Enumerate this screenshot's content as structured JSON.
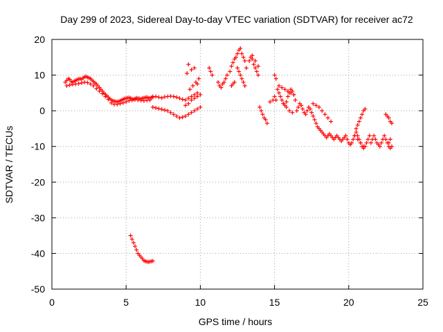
{
  "chart_data": {
    "type": "scatter",
    "title": "Day 299 of 2023, Sidereal Day-to-day VTEC variation (SDTVAR) for receiver ac72",
    "xlabel": "GPS time / hours",
    "ylabel": "SDTVAR / TECUs",
    "xlim": [
      0,
      25
    ],
    "ylim": [
      -50,
      20
    ],
    "xticks": [
      0,
      5,
      10,
      15,
      20,
      25
    ],
    "yticks": [
      -50,
      -40,
      -30,
      -20,
      -10,
      0,
      10,
      20
    ],
    "grid": true,
    "marker": "+",
    "color": "#ff0000",
    "series": [
      {
        "name": "SDTVAR",
        "x": [
          0.9,
          1.0,
          1.1,
          1.2,
          1.3,
          1.4,
          1.5,
          1.6,
          1.7,
          1.8,
          1.9,
          2.0,
          2.1,
          2.2,
          2.3,
          2.4,
          2.5,
          2.6,
          2.7,
          2.8,
          2.9,
          3.0,
          3.1,
          3.2,
          3.3,
          3.4,
          3.5,
          3.6,
          3.7,
          3.8,
          3.9,
          4.0,
          4.1,
          4.2,
          4.3,
          4.4,
          4.5,
          4.6,
          4.7,
          4.8,
          4.9,
          5.0,
          5.1,
          5.2,
          5.3,
          5.4,
          5.5,
          5.6,
          5.7,
          5.8,
          5.9,
          6.0,
          6.1,
          6.2,
          6.3,
          6.4,
          6.5,
          6.6,
          6.7,
          6.8,
          1.0,
          1.2,
          1.4,
          1.6,
          1.8,
          2.0,
          2.2,
          2.4,
          2.6,
          2.8,
          3.0,
          3.2,
          3.4,
          3.6,
          3.8,
          4.0,
          4.2,
          4.4,
          4.6,
          4.8,
          5.0,
          5.2,
          5.4,
          5.6,
          5.8,
          6.0,
          6.2,
          6.4,
          6.6,
          6.8,
          7.0,
          7.2,
          7.4,
          7.6,
          7.8,
          8.0,
          8.2,
          8.4,
          8.6,
          8.8,
          9.0,
          9.2,
          9.4,
          9.6,
          9.8,
          6.8,
          7.0,
          7.2,
          7.4,
          7.6,
          7.8,
          8.0,
          8.2,
          8.4,
          8.6,
          8.8,
          9.0,
          9.2,
          9.4,
          9.6,
          9.8,
          10.0,
          9.0,
          9.2,
          9.4,
          9.6,
          9.8,
          10.0,
          9.3,
          9.5,
          9.7,
          9.9,
          9.1,
          9.4,
          9.2,
          9.6,
          9.8,
          10.6,
          10.7,
          10.8,
          11.2,
          11.3,
          11.4,
          11.5,
          11.6,
          11.7,
          11.8,
          12.0,
          12.1,
          12.2,
          12.3,
          12.4,
          12.5,
          12.6,
          12.7,
          12.8,
          12.9,
          13.0,
          13.1,
          12.5,
          12.6,
          12.7,
          12.8,
          12.9,
          13.0,
          13.3,
          13.4,
          13.5,
          13.6,
          13.7,
          13.8,
          13.9,
          13.5,
          13.7,
          13.9,
          12.3,
          12.2,
          12.1,
          14.0,
          14.1,
          14.2,
          14.3,
          14.4,
          14.5,
          14.7,
          14.9,
          15.0,
          15.1,
          15.2,
          15.3,
          15.4,
          15.5,
          15.6,
          15.7,
          15.8,
          15.9,
          16.0,
          16.1,
          16.2,
          16.3,
          16.4,
          15.3,
          15.5,
          15.7,
          15.9,
          16.1,
          16.3,
          15.6,
          15.8,
          16.0,
          16.2,
          15.0,
          15.1,
          16.5,
          16.6,
          16.7,
          16.8,
          16.9,
          17.0,
          17.1,
          17.2,
          17.3,
          17.4,
          17.5,
          17.6,
          17.7,
          17.8,
          17.9,
          18.0,
          18.1,
          18.2,
          18.3,
          18.4,
          18.5,
          18.6,
          18.7,
          18.8,
          18.9,
          19.0,
          19.1,
          19.2,
          19.3,
          19.4,
          19.5,
          17.6,
          17.8,
          18.0,
          18.2,
          18.4,
          18.6,
          18.8,
          19.6,
          19.7,
          19.8,
          19.9,
          20.0,
          20.1,
          20.2,
          20.3,
          20.4,
          20.5,
          20.6,
          20.7,
          20.8,
          20.9,
          21.0,
          21.1,
          21.2,
          21.3,
          21.4,
          20.5,
          20.6,
          20.7,
          20.8,
          20.9,
          21.0,
          21.1,
          20.4,
          20.6,
          20.8,
          21.0,
          21.5,
          21.6,
          21.7,
          21.8,
          21.9,
          22.0,
          22.1,
          22.2,
          22.3,
          22.4,
          22.5,
          22.6,
          22.7,
          22.8,
          22.9,
          22.5,
          22.6,
          22.7,
          22.8,
          22.9,
          22.7,
          22.8,
          5.3,
          5.4,
          5.5,
          5.6,
          5.7,
          5.8,
          5.9,
          6.0,
          6.1,
          6.2,
          6.3,
          6.4,
          6.5,
          6.6,
          6.7,
          6.8
        ],
        "y": [
          8,
          8.5,
          9,
          8.8,
          8.2,
          8,
          8.3,
          8.5,
          8.7,
          8.9,
          9,
          8.8,
          9.2,
          9.5,
          9.6,
          9.4,
          9.2,
          9,
          8.6,
          8.2,
          7.8,
          7.5,
          7,
          6.5,
          6,
          5.5,
          5,
          4.6,
          4.2,
          3.8,
          3.4,
          3,
          2.8,
          2.7,
          2.6,
          2.5,
          2.6,
          2.8,
          3,
          3.2,
          3.4,
          3.5,
          3.6,
          3.7,
          3.5,
          3.3,
          3.2,
          3.4,
          3.6,
          3.5,
          3.4,
          3.3,
          3.5,
          3.6,
          3.7,
          3.8,
          3.6,
          3.5,
          3.7,
          3.8,
          7,
          7.2,
          7.4,
          7.5,
          7.6,
          7.8,
          8,
          7.9,
          7.5,
          7,
          6.2,
          5.5,
          4.8,
          4,
          3.2,
          2.2,
          1.8,
          1.8,
          2,
          2.2,
          2.5,
          2.8,
          3,
          3.1,
          3,
          2.9,
          2.8,
          2.9,
          3,
          4,
          4,
          3.8,
          3.6,
          3.9,
          4,
          4.1,
          4,
          3.8,
          3.5,
          3.2,
          3,
          3.5,
          4,
          4.5,
          5,
          1,
          0.8,
          0.6,
          0.4,
          0.2,
          0,
          -0.5,
          -1,
          -1.5,
          -2,
          -1.8,
          -1.5,
          -1,
          -0.5,
          0,
          0.5,
          1,
          1.5,
          2,
          3,
          3.5,
          4,
          4.5,
          6,
          7,
          8,
          9,
          10.5,
          11.5,
          13,
          12,
          7.5,
          12,
          11,
          10,
          8,
          7,
          6.5,
          7.5,
          8,
          9,
          10,
          11,
          12.5,
          13.5,
          14.5,
          15,
          16,
          17,
          17.5,
          16,
          15,
          14,
          12,
          12,
          11,
          10,
          9,
          8,
          7,
          14,
          15,
          14.5,
          13,
          12,
          11,
          10,
          15.5,
          14,
          12.5,
          8,
          7.5,
          7,
          1,
          0,
          -1,
          -2,
          -2.5,
          -3.5,
          2.5,
          3,
          10,
          9,
          6,
          5,
          4,
          3,
          2,
          1.5,
          2.5,
          4,
          5,
          6,
          5.5,
          4.5,
          3,
          7,
          6.5,
          6,
          5.5,
          5,
          4.5,
          2,
          1,
          0,
          -0.5,
          4,
          3,
          0,
          1,
          2,
          1.5,
          0.5,
          -0.5,
          -1,
          0,
          1,
          0.5,
          -0.5,
          -1.5,
          -2.5,
          -3.5,
          -4.5,
          -5,
          -5.5,
          -6,
          -6.5,
          -7,
          -7.5,
          -7,
          -6.5,
          -7,
          -7.5,
          -8,
          -7.5,
          -7,
          -7.5,
          -8,
          -8.5,
          2,
          1.5,
          1,
          0,
          -1,
          -2,
          -3,
          -8,
          -7.5,
          -7,
          -8,
          -9,
          -9.5,
          -9,
          -8,
          -7,
          -6,
          -7,
          -8,
          -9,
          -10,
          -10.5,
          -10,
          -9,
          -8,
          -7,
          -5,
          -4,
          -3,
          -2,
          -1,
          0,
          0.5,
          -7,
          -8,
          -9,
          -10,
          -9,
          -8,
          -7,
          -8,
          -9,
          -9.5,
          -10,
          -9,
          -8,
          -7,
          -8,
          -9,
          -10,
          -10.5,
          -10,
          -1,
          -1.5,
          -2,
          -3,
          -3.5,
          -9,
          -8,
          -35,
          -36,
          -37,
          -38,
          -39,
          -40,
          -40.5,
          -41,
          -41.5,
          -42,
          -42.2,
          -42.3,
          -42.4,
          -42.3,
          -42.2,
          -42.1
        ]
      }
    ]
  }
}
